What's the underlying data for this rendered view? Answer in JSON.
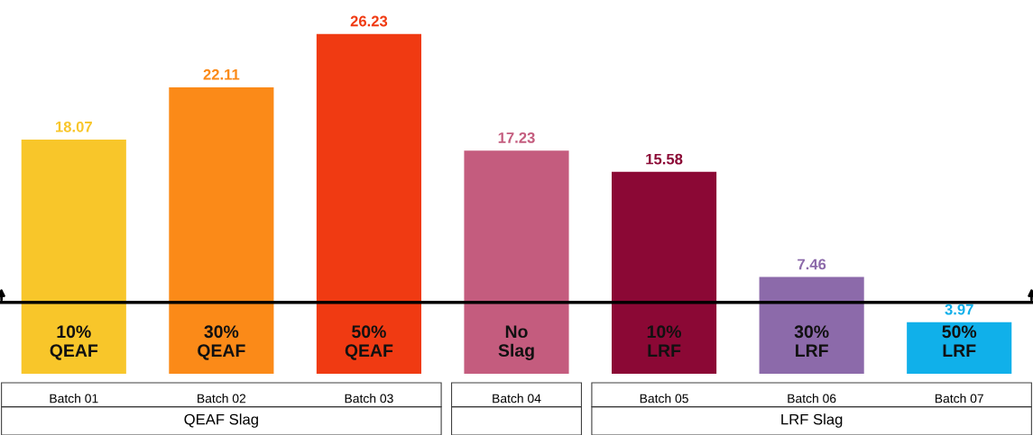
{
  "chart_data": {
    "type": "bar",
    "categories": [
      "Batch 01",
      "Batch 02",
      "Batch 03",
      "Batch 04",
      "Batch 05",
      "Batch 06",
      "Batch 07"
    ],
    "values": [
      18.07,
      22.11,
      26.23,
      17.23,
      15.58,
      7.46,
      3.97
    ],
    "colors": [
      "#f8c62a",
      "#fb8a18",
      "#f03a12",
      "#c45c7e",
      "#8b0835",
      "#8c6aaa",
      "#10b0ea"
    ],
    "data_labels": true,
    "tick_labels": "x",
    "ref_lines": [
      {
        "axis": "y",
        "value": 5.5,
        "label": null,
        "color": "#000000"
      }
    ],
    "annotations": [
      "10%\nQEAF",
      "30%\nQEAF",
      "50%\nQEAF",
      "No\nSlag",
      "10%\nLRF",
      "30%\nLRF",
      "50%\nLRF",
      "QEAF Slag",
      "LRF Slag"
    ]
  }
}
